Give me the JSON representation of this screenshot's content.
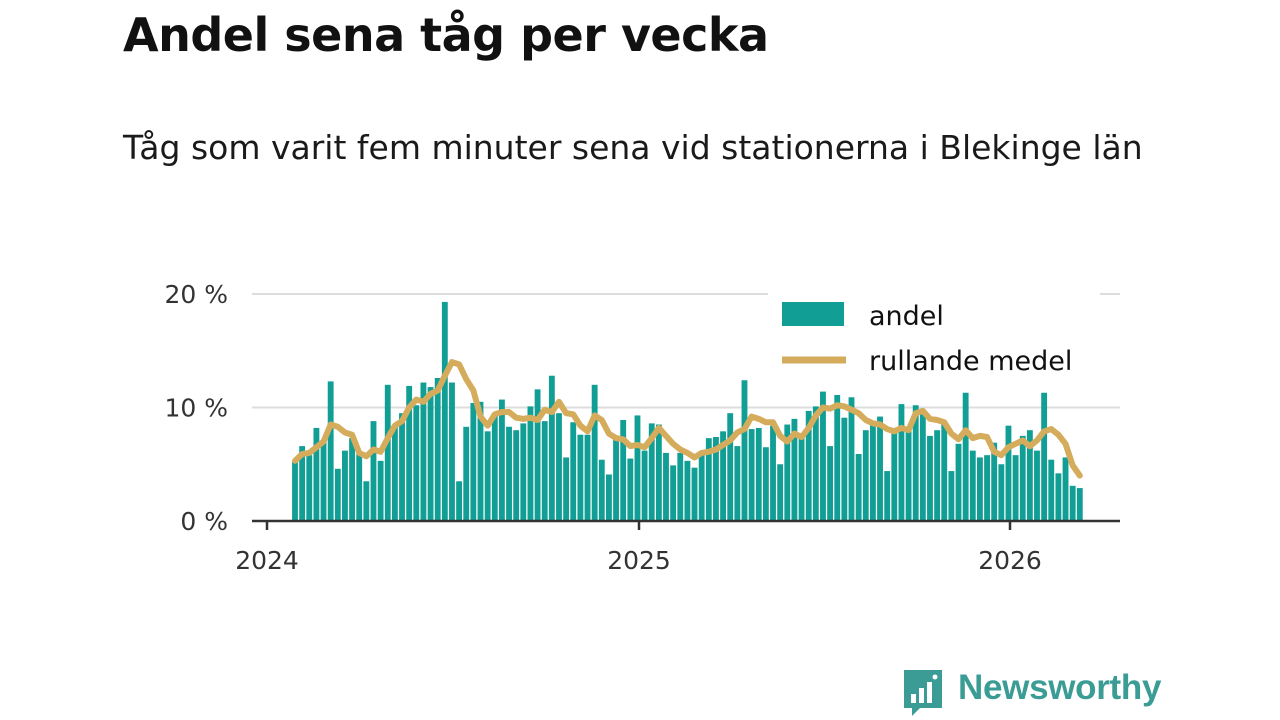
{
  "chart_data": {
    "type": "bar",
    "title": "Andel sena tåg per vecka",
    "subtitle": "Tåg som varit fem minuter sena vid stationerna i Blekinge län",
    "xlabel": "",
    "ylabel": "",
    "x_tick_labels": [
      "2024",
      "2025",
      "2026"
    ],
    "y_tick_labels": [
      "0 %",
      "10 %",
      "20 %"
    ],
    "ylim": [
      0,
      20
    ],
    "y_unit": "%",
    "grid": true,
    "legend_position": "top-right",
    "colors": {
      "andel": "#119e95",
      "rullande_medel": "#d4ac5c"
    },
    "series": [
      {
        "name": "andel",
        "type": "bar",
        "start_week": "2024-W05",
        "values": [
          5.2,
          6.6,
          5.8,
          8.2,
          7.0,
          12.3,
          4.6,
          6.2,
          7.3,
          5.9,
          3.5,
          8.8,
          5.3,
          12.0,
          8.4,
          9.5,
          11.9,
          10.2,
          12.2,
          11.8,
          12.6,
          19.3,
          12.2,
          3.5,
          8.3,
          10.4,
          10.5,
          7.9,
          9.5,
          10.7,
          8.3,
          8.0,
          8.6,
          10.1,
          11.6,
          8.8,
          12.8,
          9.5,
          5.6,
          8.7,
          7.6,
          7.6,
          12.0,
          5.4,
          4.1,
          7.2,
          8.9,
          5.5,
          9.3,
          6.2,
          8.6,
          8.5,
          6.0,
          4.9,
          6.0,
          5.3,
          4.7,
          6.1,
          7.3,
          7.4,
          7.9,
          9.5,
          6.6,
          12.4,
          8.1,
          8.2,
          6.5,
          8.4,
          5.0,
          8.5,
          9.0,
          7.7,
          9.7,
          10.1,
          11.4,
          6.6,
          11.1,
          9.1,
          10.9,
          5.9,
          8.0,
          8.6,
          9.2,
          4.4,
          8.2,
          10.3,
          8.0,
          10.2,
          9.8,
          7.5,
          8.0,
          8.7,
          4.4,
          6.8,
          11.3,
          6.2,
          5.6,
          5.8,
          6.9,
          5.0,
          8.4,
          5.8,
          7.5,
          8.0,
          6.2,
          11.3,
          5.4,
          4.2,
          5.6,
          3.1,
          2.9
        ]
      },
      {
        "name": "rullande medel",
        "type": "line",
        "start_week": "2024-W05",
        "values": [
          5.3,
          5.9,
          6.0,
          6.5,
          7.0,
          8.5,
          8.3,
          7.8,
          7.6,
          6.0,
          5.7,
          6.3,
          6.1,
          7.3,
          8.4,
          8.8,
          10.0,
          10.7,
          10.5,
          11.2,
          11.5,
          12.8,
          14.0,
          13.8,
          12.5,
          11.5,
          9.2,
          8.4,
          9.4,
          9.6,
          9.6,
          9.1,
          9.0,
          9.1,
          8.9,
          9.8,
          9.6,
          10.5,
          9.5,
          9.4,
          8.4,
          7.9,
          9.3,
          8.9,
          7.7,
          7.3,
          7.2,
          6.6,
          6.7,
          6.5,
          7.3,
          8.2,
          7.5,
          6.8,
          6.3,
          6.0,
          5.6,
          6.0,
          6.1,
          6.3,
          6.7,
          7.1,
          7.8,
          8.1,
          9.2,
          9.0,
          8.7,
          8.7,
          7.5,
          7.0,
          7.7,
          7.4,
          8.2,
          9.3,
          10.0,
          9.9,
          10.2,
          10.1,
          9.8,
          9.5,
          8.9,
          8.6,
          8.5,
          8.1,
          7.9,
          8.2,
          8.0,
          9.5,
          9.7,
          9.0,
          8.9,
          8.7,
          7.7,
          7.2,
          8.0,
          7.3,
          7.5,
          7.4,
          6.1,
          5.8,
          6.5,
          6.8,
          7.1,
          6.6,
          7.1,
          7.9,
          8.1,
          7.6,
          6.8,
          4.9,
          4.0
        ]
      }
    ]
  },
  "branding": {
    "name": "Newsworthy"
  }
}
